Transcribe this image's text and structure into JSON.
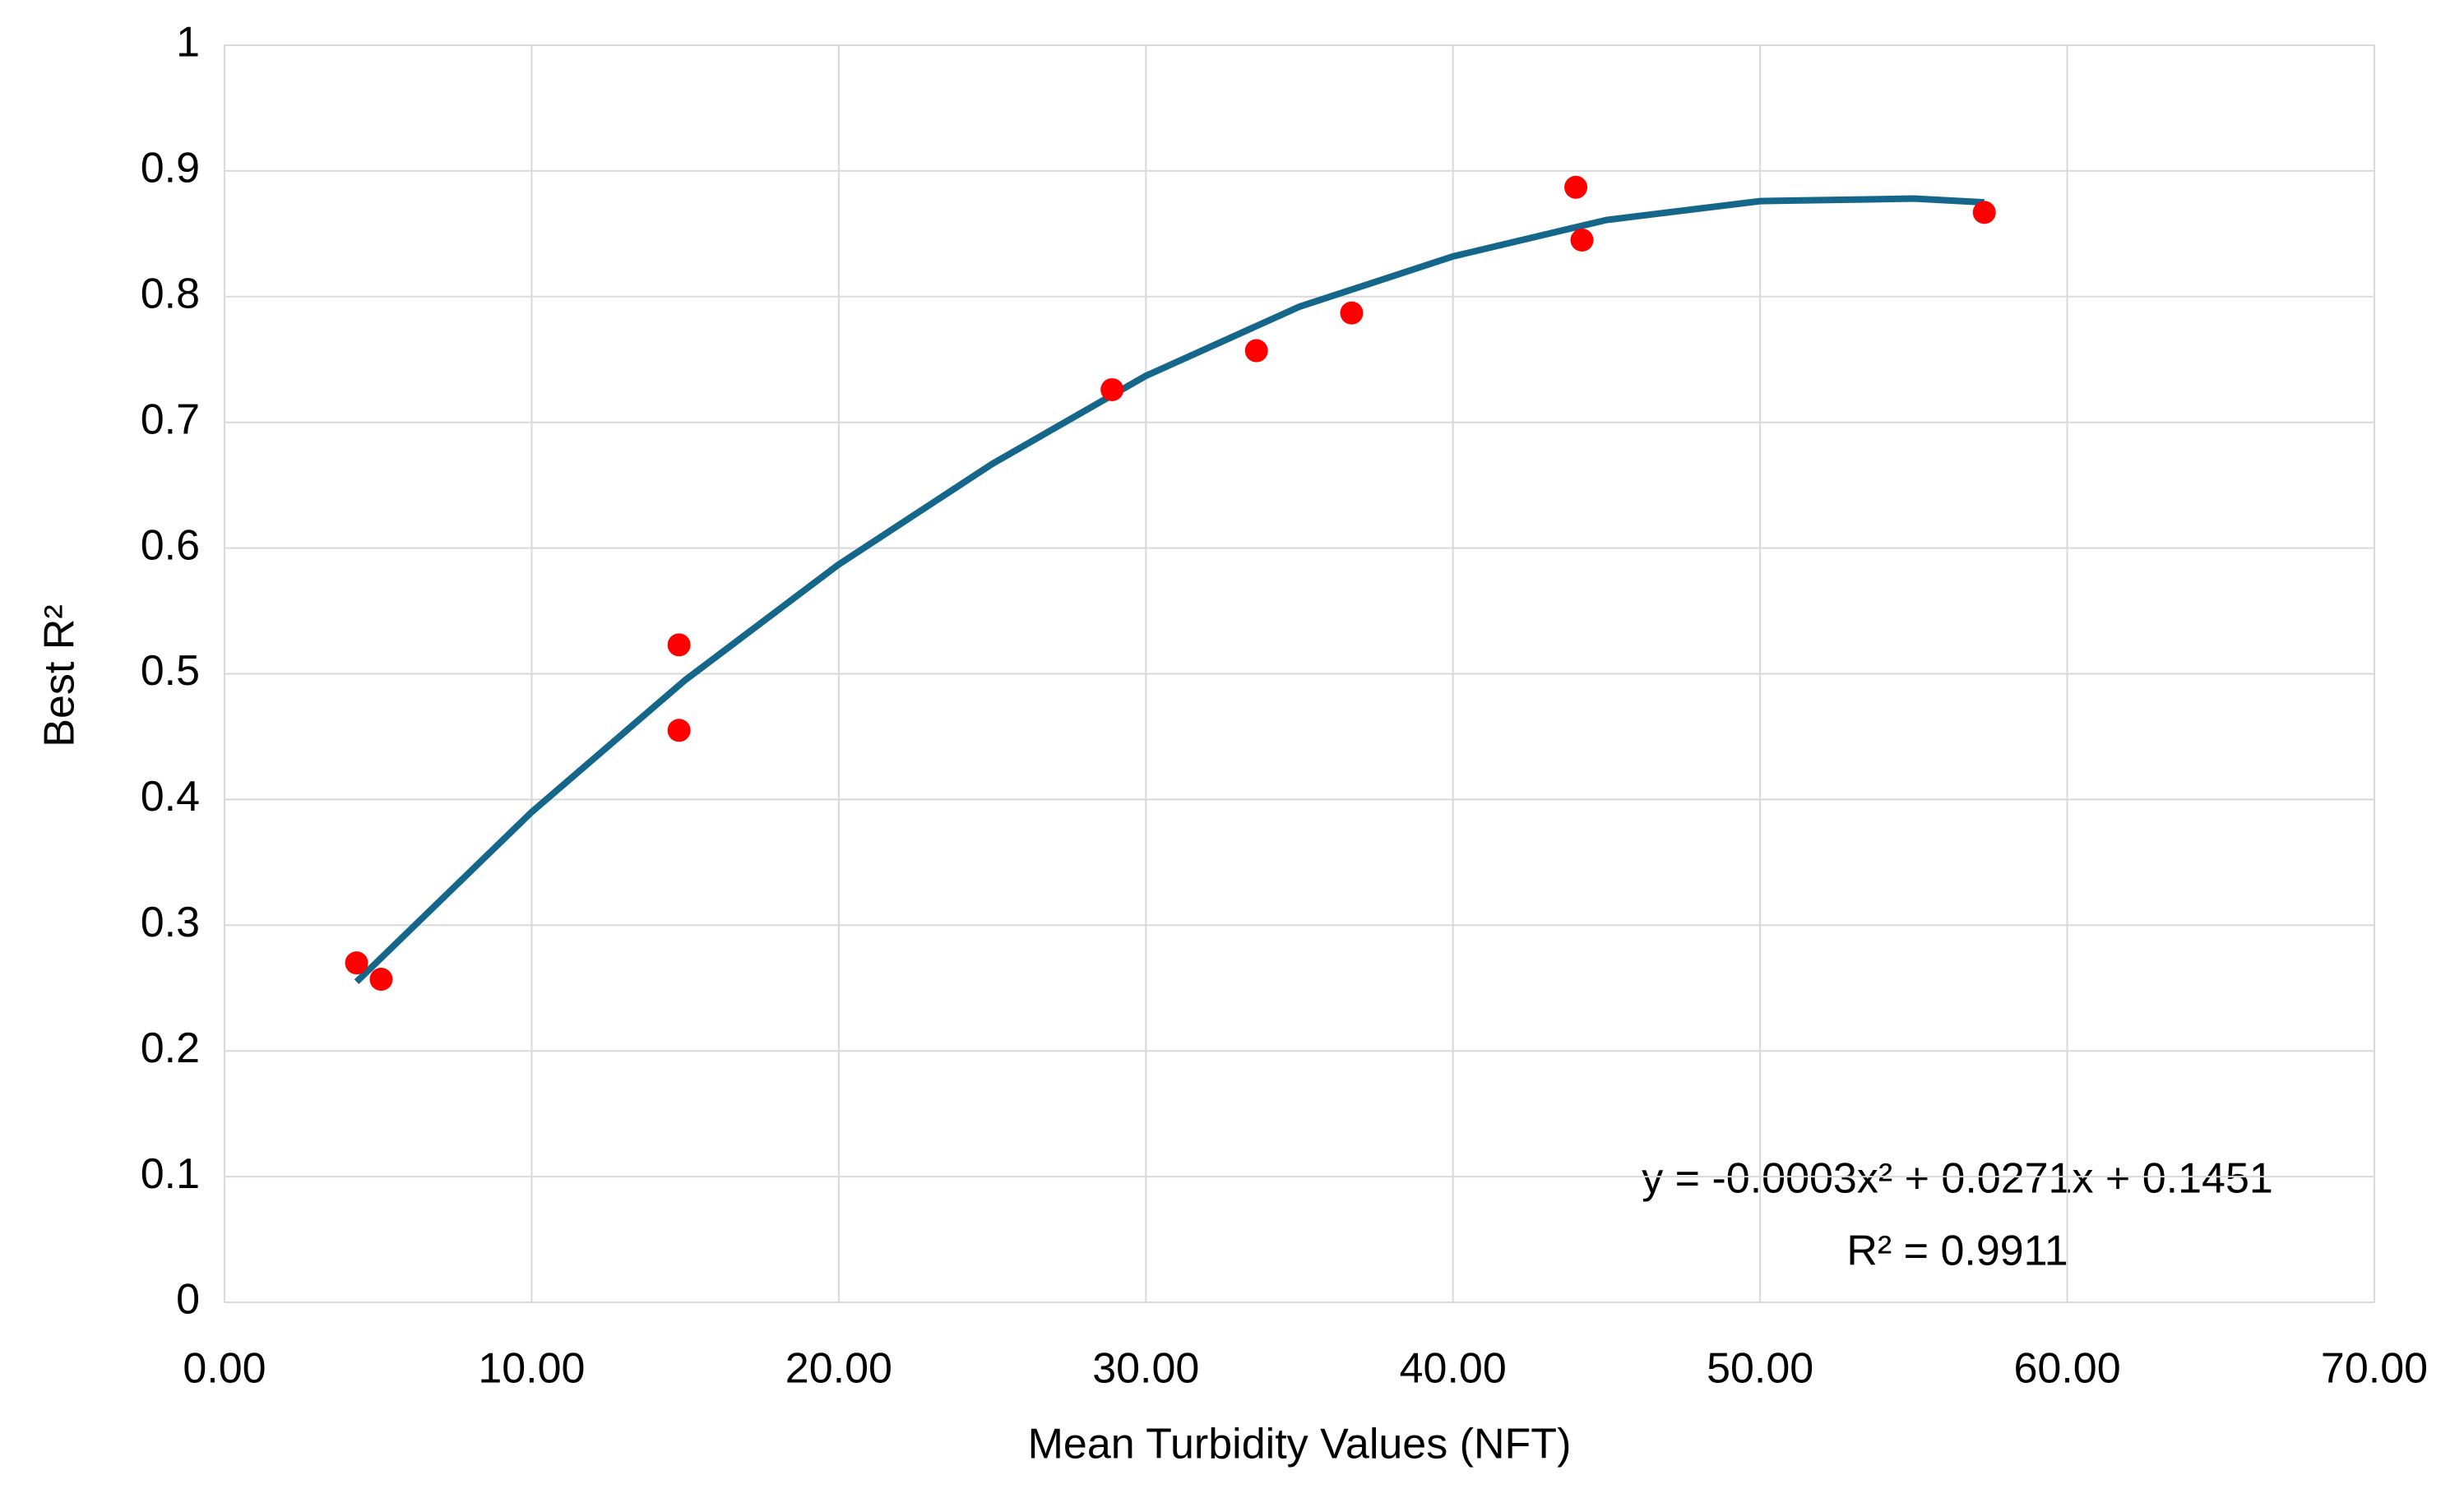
{
  "chart_data": {
    "type": "scatter",
    "x_label": "Mean Turbidity Values (NFT)",
    "y_label": "Best R²",
    "annotations": [
      "y = -0.0003x² + 0.0271x + 0.1451",
      "R² = 0.9911"
    ],
    "series": [
      {
        "color": "#ff0000",
        "x": [
          4.3,
          5.1,
          14.8,
          14.8,
          28.9,
          33.6,
          36.7,
          44.0,
          44.2,
          57.3
        ],
        "values": [
          0.27,
          0.257,
          0.523,
          0.455,
          0.726,
          0.757,
          0.787,
          0.887,
          0.845,
          0.867
        ]
      }
    ],
    "trendline": {
      "color": "#14678a",
      "x": [
        4.3,
        10,
        15,
        20,
        25,
        30,
        35,
        40,
        45,
        50,
        55,
        57.3
      ],
      "values": [
        0.255,
        0.39,
        0.495,
        0.587,
        0.667,
        0.737,
        0.792,
        0.832,
        0.861,
        0.876,
        0.878,
        0.875
      ]
    },
    "xlim": [
      0,
      70
    ],
    "xticks": [
      {
        "value": 0,
        "label": "0.00"
      },
      {
        "value": 10,
        "label": "10.00"
      },
      {
        "value": 20,
        "label": "20.00"
      },
      {
        "value": 30,
        "label": "30.00"
      },
      {
        "value": 40,
        "label": "40.00"
      },
      {
        "value": 50,
        "label": "50.00"
      },
      {
        "value": 60,
        "label": "60.00"
      },
      {
        "value": 70,
        "label": "70.00"
      }
    ],
    "ylim": [
      0,
      1
    ],
    "yticks": [
      0,
      0.1,
      0.2,
      0.3,
      0.4,
      0.5,
      0.6,
      0.7,
      0.8,
      0.9,
      1
    ],
    "grid": true
  }
}
